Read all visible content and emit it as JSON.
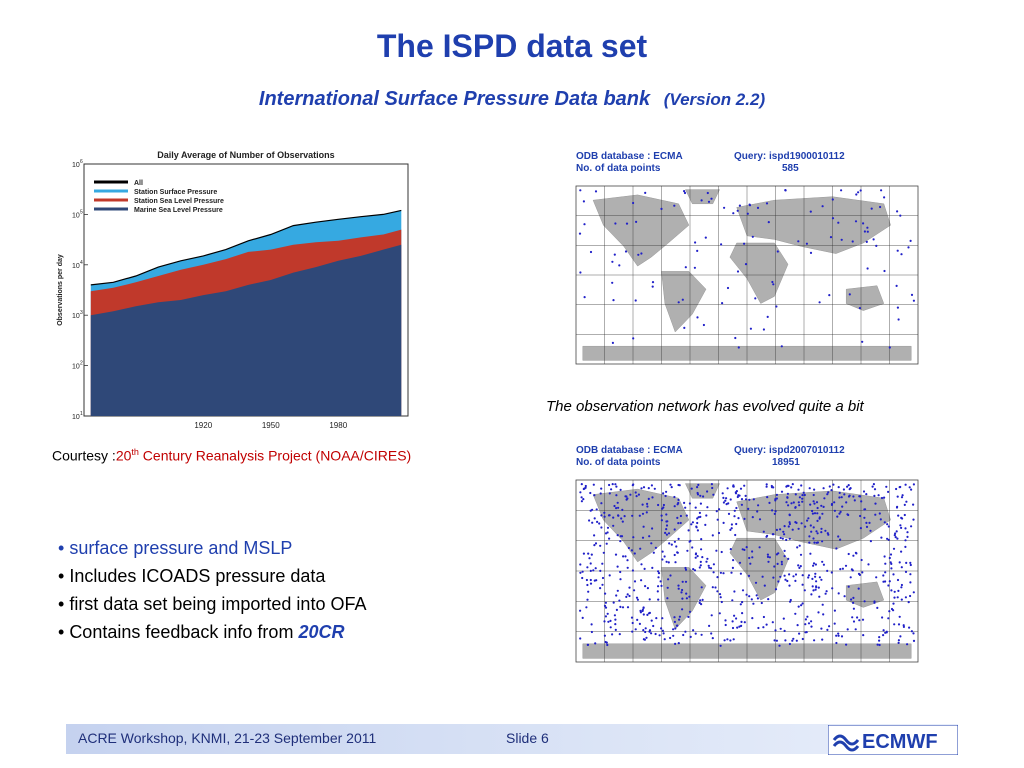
{
  "title": "The ISPD data set",
  "subtitle": {
    "main": "International Surface Pressure Data bank",
    "version": "(Version 2.2)"
  },
  "chart": {
    "title": "Daily Average of Number of Observations",
    "ylabel": "Observations per day",
    "yticks": [
      "10",
      "10",
      "10",
      "10",
      "10",
      "10"
    ],
    "yexp": [
      "1",
      "2",
      "3",
      "4",
      "5",
      "6"
    ],
    "xticks": [
      "1920",
      "1950",
      "1980"
    ],
    "legend": [
      "All",
      "Station Surface Pressure",
      "Station Sea Level Pressure",
      "Marine Sea Level Pressure"
    ],
    "colors": {
      "all": "#000000",
      "surface": "#36a9e1",
      "sealevel": "#c0392b",
      "marine": "#2f4878"
    }
  },
  "chart_data": {
    "type": "area",
    "title": "Daily Average of Number of Observations",
    "ylabel": "Observations per day",
    "yscale": "log",
    "ylim": [
      10,
      1000000
    ],
    "x": [
      1870,
      1880,
      1890,
      1900,
      1910,
      1920,
      1930,
      1940,
      1950,
      1960,
      1970,
      1980,
      1990,
      2000,
      2008
    ],
    "series": [
      {
        "name": "All",
        "values": [
          4000,
          4500,
          6000,
          9000,
          12000,
          15000,
          20000,
          30000,
          40000,
          60000,
          70000,
          80000,
          90000,
          100000,
          120000
        ]
      },
      {
        "name": "Station Surface Pressure",
        "values": [
          4000,
          4500,
          6000,
          9000,
          12000,
          15000,
          20000,
          30000,
          40000,
          60000,
          70000,
          80000,
          90000,
          100000,
          120000
        ]
      },
      {
        "name": "Station Sea Level Pressure",
        "values": [
          3000,
          3500,
          4500,
          6000,
          8000,
          10000,
          13000,
          18000,
          20000,
          25000,
          28000,
          30000,
          35000,
          40000,
          50000
        ]
      },
      {
        "name": "Marine Sea Level Pressure",
        "values": [
          1000,
          1200,
          1500,
          1800,
          2000,
          2500,
          3000,
          4000,
          5000,
          7000,
          9000,
          12000,
          15000,
          20000,
          25000
        ]
      }
    ]
  },
  "courtesy": {
    "prefix": "Courtesy :",
    "num": "20",
    "sup": "th",
    "rest": " Century Reanalysis Project (NOAA/CIRES)"
  },
  "map_top": {
    "header_left_1": "ODB database : ECMA",
    "header_left_2": "No. of data points",
    "header_right_1": "Query: ispd1900010112",
    "header_right_2": "585"
  },
  "map_bottom": {
    "header_left_1": "ODB database : ECMA",
    "header_left_2": "No. of data points",
    "header_right_1": "Query: ispd2007010112",
    "header_right_2": "18951"
  },
  "caption": "The observation network has evolved quite a bit",
  "bullets": {
    "b1": "surface pressure and MSLP",
    "b2": "Includes ICOADS pressure data",
    "b3": "first data set being imported into OFA",
    "b4_prefix": "Contains feedback info from ",
    "b4_emph": "20CR"
  },
  "footer": {
    "left": "ACRE Workshop, KNMI, 21-23 September 2011",
    "slide": "Slide 6",
    "logo": "ECMWF"
  }
}
